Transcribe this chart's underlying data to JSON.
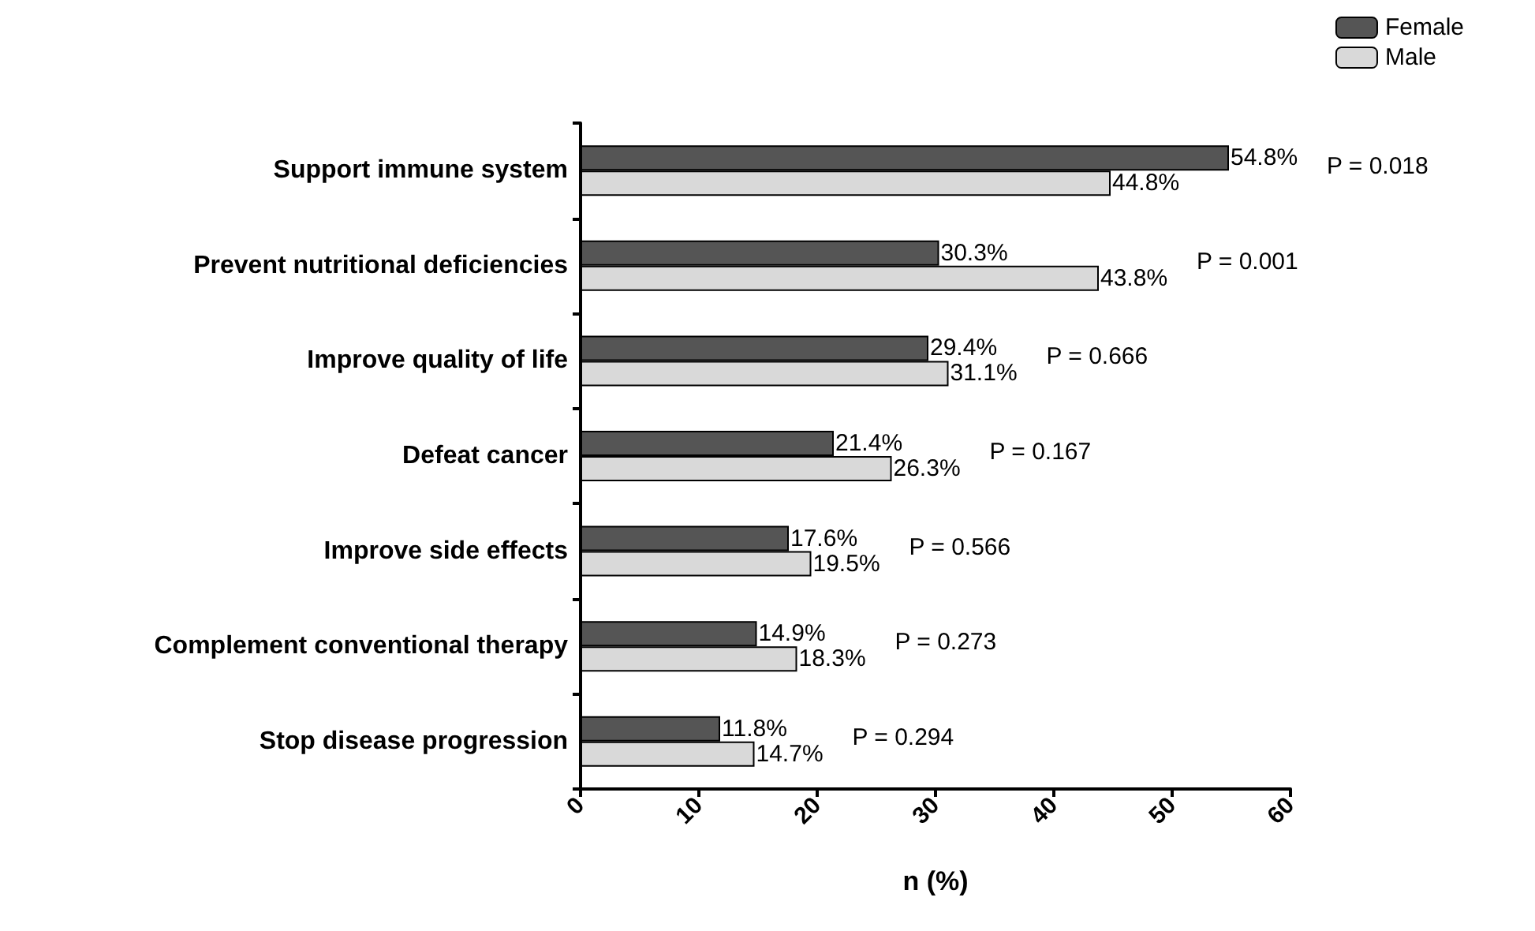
{
  "chart_data": {
    "type": "bar",
    "orientation": "horizontal",
    "xlabel": "n (%)",
    "categories": [
      "Support immune system",
      "Prevent nutritional deficiencies",
      "Improve quality of life",
      "Defeat cancer",
      "Improve side effects",
      "Complement conventional therapy",
      "Stop disease progression"
    ],
    "series": [
      {
        "name": "Female",
        "color": "#555555",
        "values": [
          54.8,
          30.3,
          29.4,
          21.4,
          17.6,
          14.9,
          11.8
        ],
        "value_labels": [
          "54.8%",
          "30.3%",
          "29.4%",
          "21.4%",
          "17.6%",
          "14.9%",
          "11.8%"
        ]
      },
      {
        "name": "Male",
        "color": "#d9d9d9",
        "values": [
          44.8,
          43.8,
          31.1,
          26.3,
          19.5,
          18.3,
          14.7
        ],
        "value_labels": [
          "44.8%",
          "43.8%",
          "31.1%",
          "26.3%",
          "19.5%",
          "18.3%",
          "14.7%"
        ]
      }
    ],
    "xlim": [
      0,
      60
    ],
    "xticks": [
      0,
      10,
      20,
      30,
      40,
      50,
      60
    ],
    "annotations": [
      "P = 0.018",
      "P = 0.001",
      "P = 0.666",
      "P = 0.167",
      "P = 0.566",
      "P = 0.273",
      "P = 0.294"
    ],
    "legend": "top right",
    "grid": false
  }
}
